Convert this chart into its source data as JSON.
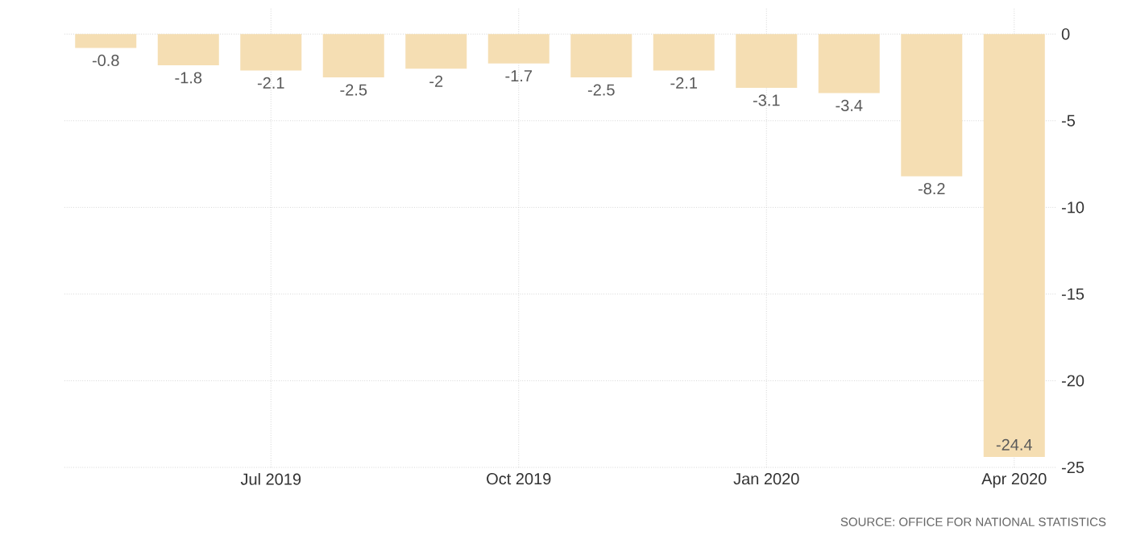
{
  "chart_data": {
    "type": "bar",
    "categories": [
      null,
      null,
      "Jul 2019",
      null,
      null,
      "Oct 2019",
      null,
      null,
      "Jan 2020",
      null,
      null,
      "Apr 2020"
    ],
    "values": [
      -0.8,
      -1.8,
      -2.1,
      -2.5,
      -2,
      -1.7,
      -2.5,
      -2.1,
      -3.1,
      -3.4,
      -8.2,
      -24.4
    ],
    "color": "#f5deb3",
    "ylim": [
      -25,
      1.5
    ],
    "yticks": [
      -25,
      -20,
      -15,
      -10,
      -5,
      0
    ],
    "grid": true,
    "data_labels": true,
    "annotations": [
      "SOURCE: OFFICE FOR NATIONAL STATISTICS"
    ]
  }
}
